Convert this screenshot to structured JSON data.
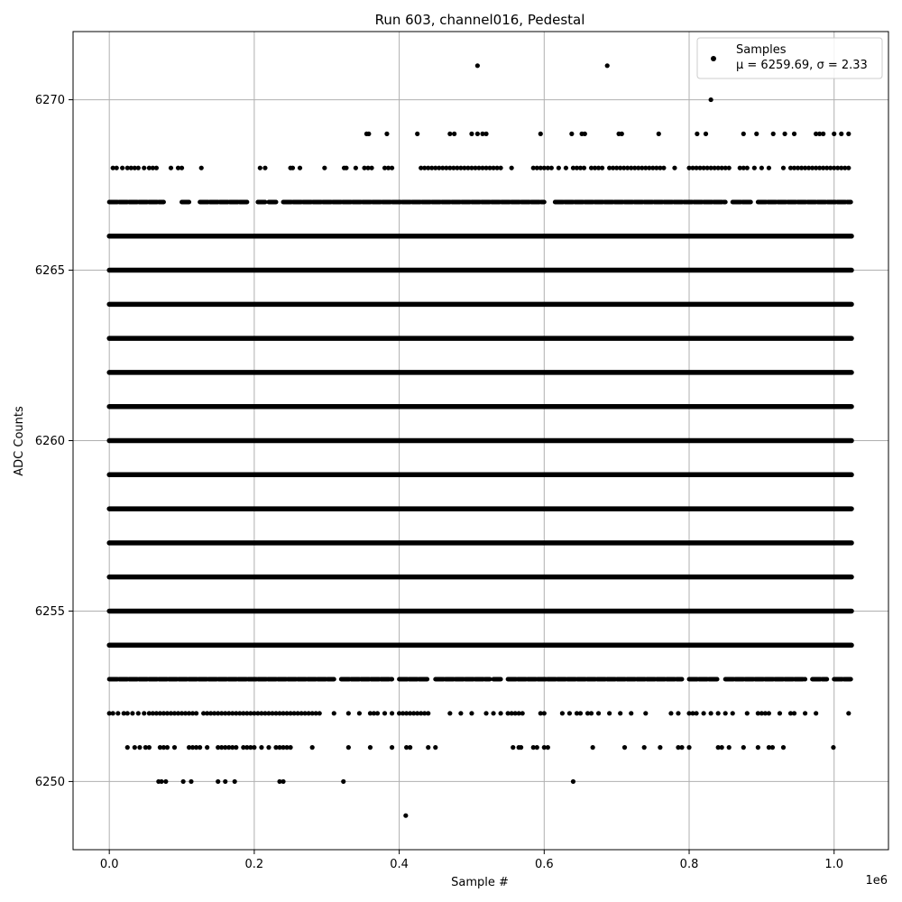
{
  "chart_data": {
    "type": "scatter",
    "title": "Run 603, channel016, Pedestal",
    "xlabel": "Sample #",
    "ylabel": "ADC Counts",
    "x_offset_label": "1e6",
    "xlim": [
      -0.05,
      1.075
    ],
    "ylim": [
      6248,
      6272
    ],
    "x_scale": 1000000,
    "x_ticks": [
      0.0,
      0.2,
      0.4,
      0.6,
      0.8,
      1.0
    ],
    "x_tick_labels": [
      "0.0",
      "0.2",
      "0.4",
      "0.6",
      "0.8",
      "1.0"
    ],
    "y_ticks": [
      6250,
      6255,
      6260,
      6265,
      6270
    ],
    "y_tick_labels": [
      "6250",
      "6255",
      "6260",
      "6265",
      "6270"
    ],
    "grid": true,
    "legend": {
      "placement": "top-right",
      "entry_name": "Samples",
      "entry_stats": "μ = 6259.69, σ = 2.33"
    },
    "marker_color": "#000000",
    "mean": 6259.69,
    "sigma": 2.33,
    "x_max_sample": 1.024,
    "solid_levels": [
      6254,
      6255,
      6256,
      6257,
      6258,
      6259,
      6260,
      6261,
      6262,
      6263,
      6264,
      6265,
      6266
    ],
    "sparse_points": [
      {
        "y": 6268,
        "x": [
          0.005,
          0.01,
          0.018,
          0.025,
          0.03,
          0.035,
          0.04,
          0.048,
          0.055,
          0.06,
          0.065,
          0.085,
          0.095,
          0.1,
          0.127,
          0.208,
          0.215,
          0.25,
          0.253,
          0.263,
          0.297,
          0.324,
          0.327,
          0.34,
          0.352,
          0.357,
          0.362,
          0.38,
          0.385,
          0.39,
          0.43,
          0.435,
          0.44,
          0.445,
          0.45,
          0.455,
          0.46,
          0.465,
          0.47,
          0.475,
          0.48,
          0.485,
          0.49,
          0.495,
          0.5,
          0.505,
          0.51,
          0.515,
          0.52,
          0.525,
          0.53,
          0.535,
          0.54,
          0.555,
          0.585,
          0.59,
          0.595,
          0.6,
          0.605,
          0.61,
          0.62,
          0.63,
          0.64,
          0.645,
          0.65,
          0.655,
          0.665,
          0.67,
          0.675,
          0.68,
          0.69,
          0.695,
          0.7,
          0.705,
          0.71,
          0.715,
          0.72,
          0.725,
          0.73,
          0.735,
          0.74,
          0.745,
          0.75,
          0.755,
          0.76,
          0.765,
          0.78,
          0.8,
          0.805,
          0.81,
          0.815,
          0.82,
          0.825,
          0.83,
          0.835,
          0.84,
          0.845,
          0.85,
          0.855,
          0.87,
          0.875,
          0.88,
          0.89,
          0.9,
          0.91,
          0.93,
          0.94,
          0.945,
          0.95,
          0.955,
          0.96,
          0.965,
          0.97,
          0.975,
          0.98,
          0.985,
          0.99,
          0.995,
          1.0,
          1.005,
          1.01,
          1.015,
          1.02
        ]
      },
      {
        "y": 6267,
        "dense_from": 0.0,
        "dense_to": 1.023,
        "gaps": [
          [
            0.075,
            0.1
          ],
          [
            0.11,
            0.125
          ],
          [
            0.19,
            0.205
          ],
          [
            0.215,
            0.22
          ],
          [
            0.23,
            0.24
          ],
          [
            0.6,
            0.615
          ],
          [
            0.85,
            0.86
          ],
          [
            0.885,
            0.895
          ]
        ]
      },
      {
        "y": 6269,
        "x": [
          0.355,
          0.358,
          0.383,
          0.425,
          0.47,
          0.476,
          0.5,
          0.508,
          0.515,
          0.52,
          0.595,
          0.638,
          0.652,
          0.656,
          0.703,
          0.707,
          0.758,
          0.811,
          0.823,
          0.875,
          0.893,
          0.916,
          0.932,
          0.945,
          0.975,
          0.98,
          0.985,
          1.0,
          1.01,
          1.02
        ]
      },
      {
        "y": 6270,
        "x": [
          0.83
        ]
      },
      {
        "y": 6271,
        "x": [
          0.508,
          0.687
        ]
      },
      {
        "y": 6253,
        "dense_from": 0.0,
        "dense_to": 1.023,
        "gaps": [
          [
            0.31,
            0.32
          ],
          [
            0.39,
            0.4
          ],
          [
            0.44,
            0.45
          ],
          [
            0.525,
            0.53
          ],
          [
            0.54,
            0.55
          ],
          [
            0.79,
            0.8
          ],
          [
            0.84,
            0.85
          ],
          [
            0.96,
            0.97
          ],
          [
            0.99,
            1.0
          ]
        ]
      },
      {
        "y": 6252,
        "x": [
          0.0,
          0.005,
          0.012,
          0.02,
          0.025,
          0.032,
          0.04,
          0.048,
          0.055,
          0.06,
          0.065,
          0.07,
          0.075,
          0.08,
          0.085,
          0.09,
          0.095,
          0.1,
          0.105,
          0.11,
          0.115,
          0.12,
          0.13,
          0.135,
          0.14,
          0.145,
          0.15,
          0.155,
          0.16,
          0.165,
          0.17,
          0.175,
          0.18,
          0.185,
          0.19,
          0.195,
          0.2,
          0.205,
          0.21,
          0.215,
          0.22,
          0.225,
          0.23,
          0.235,
          0.24,
          0.245,
          0.25,
          0.255,
          0.26,
          0.265,
          0.27,
          0.275,
          0.28,
          0.285,
          0.29,
          0.31,
          0.33,
          0.345,
          0.36,
          0.365,
          0.37,
          0.38,
          0.39,
          0.4,
          0.405,
          0.41,
          0.415,
          0.42,
          0.425,
          0.43,
          0.435,
          0.44,
          0.47,
          0.485,
          0.5,
          0.52,
          0.53,
          0.54,
          0.55,
          0.555,
          0.56,
          0.565,
          0.57,
          0.595,
          0.6,
          0.625,
          0.635,
          0.645,
          0.65,
          0.66,
          0.665,
          0.675,
          0.69,
          0.705,
          0.72,
          0.74,
          0.775,
          0.785,
          0.8,
          0.805,
          0.81,
          0.82,
          0.83,
          0.84,
          0.85,
          0.86,
          0.88,
          0.895,
          0.9,
          0.905,
          0.91,
          0.925,
          0.94,
          0.945,
          0.96,
          0.975,
          1.02
        ]
      },
      {
        "y": 6251,
        "x": [
          0.025,
          0.035,
          0.042,
          0.05,
          0.055,
          0.07,
          0.075,
          0.08,
          0.09,
          0.11,
          0.115,
          0.12,
          0.125,
          0.135,
          0.15,
          0.155,
          0.16,
          0.165,
          0.17,
          0.175,
          0.185,
          0.19,
          0.195,
          0.2,
          0.21,
          0.22,
          0.23,
          0.235,
          0.24,
          0.245,
          0.25,
          0.28,
          0.33,
          0.36,
          0.39,
          0.41,
          0.415,
          0.44,
          0.45,
          0.557,
          0.565,
          0.568,
          0.585,
          0.59,
          0.6,
          0.605,
          0.667,
          0.711,
          0.738,
          0.76,
          0.785,
          0.79,
          0.8,
          0.84,
          0.845,
          0.855,
          0.875,
          0.895,
          0.91,
          0.915,
          0.93,
          0.999
        ]
      },
      {
        "y": 6250,
        "x": [
          0.068,
          0.072,
          0.078,
          0.102,
          0.113,
          0.15,
          0.16,
          0.173,
          0.235,
          0.24,
          0.323,
          0.64
        ]
      },
      {
        "y": 6249,
        "x": [
          0.409
        ]
      }
    ]
  }
}
